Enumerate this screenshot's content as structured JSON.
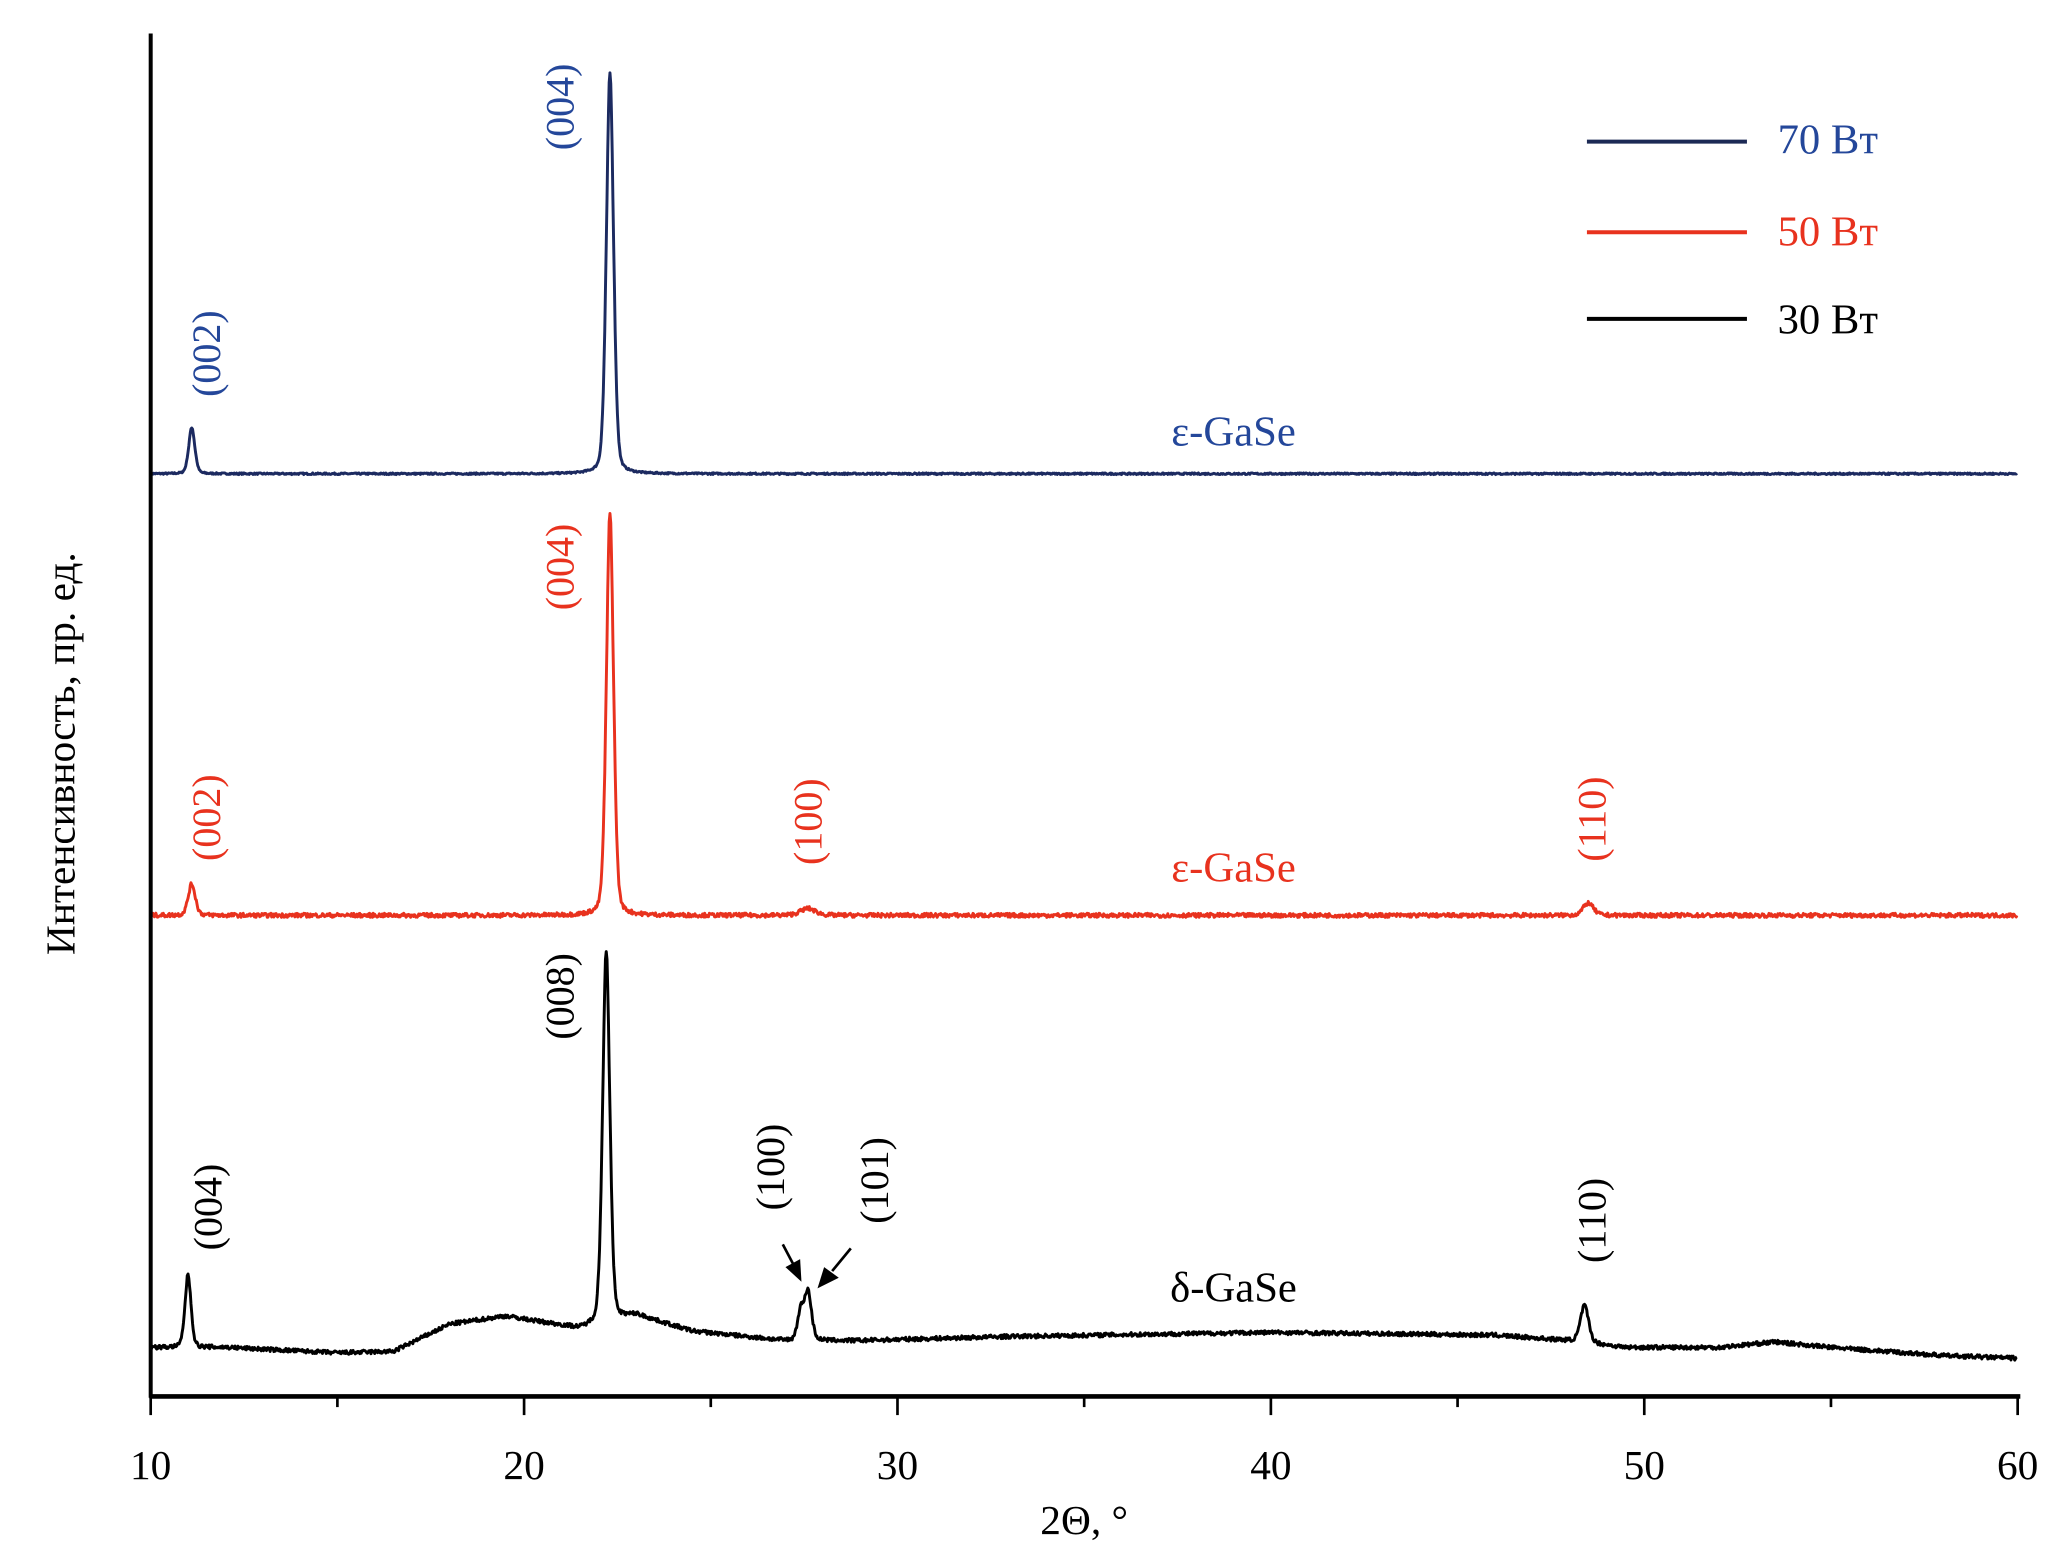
{
  "chart_data": {
    "type": "line",
    "title": "",
    "xlabel": "2Θ, °",
    "ylabel": "Интенсивность, пр. ед.",
    "xlim": [
      10,
      60
    ],
    "ylim": [
      0,
      100
    ],
    "xticks": [
      10,
      20,
      30,
      40,
      50,
      60
    ],
    "x_minor_step": 5,
    "y_ticks_shown": false,
    "grid": false,
    "legend": {
      "placement": "top-right",
      "entries": [
        "70 Вт",
        "50 Вт",
        "30 Вт"
      ]
    },
    "series": [
      {
        "name": "70 Вт",
        "color": "#24479a",
        "phase_label": "ε-GaSe",
        "baseline": [
          [
            10,
            67.7
          ],
          [
            60,
            67.7
          ]
        ],
        "peaks": [
          {
            "x": 11.1,
            "height": 3.4,
            "width": 0.12,
            "label": "(002)"
          },
          {
            "x": 22.3,
            "height": 29.4,
            "width": 0.14,
            "label": "(004)"
          }
        ]
      },
      {
        "name": "50 Вт",
        "color": "#e8321e",
        "phase_label": "ε-GaSe",
        "baseline": [
          [
            10,
            35.3
          ],
          [
            60,
            35.3
          ]
        ],
        "peaks": [
          {
            "x": 11.1,
            "height": 2.3,
            "width": 0.14,
            "label": "(002)"
          },
          {
            "x": 22.3,
            "height": 29.5,
            "width": 0.14,
            "label": "(004)"
          },
          {
            "x": 27.6,
            "height": 0.5,
            "width": 0.3,
            "label": "(100)"
          },
          {
            "x": 48.5,
            "height": 0.9,
            "width": 0.2,
            "label": "(110)"
          }
        ]
      },
      {
        "name": "30 Вт",
        "color": "#000000",
        "phase_label": "δ-GaSe",
        "baseline": [
          [
            10,
            3.6
          ],
          [
            12,
            3.6
          ],
          [
            15,
            3.2
          ],
          [
            16.5,
            3.3
          ],
          [
            18,
            5.3
          ],
          [
            19.5,
            5.9
          ],
          [
            21.5,
            5.0
          ],
          [
            23,
            6.0
          ],
          [
            24.5,
            4.8
          ],
          [
            27,
            4.1
          ],
          [
            29,
            4.1
          ],
          [
            33,
            4.4
          ],
          [
            40,
            4.7
          ],
          [
            46,
            4.5
          ],
          [
            48,
            4.1
          ],
          [
            49.5,
            3.6
          ],
          [
            52,
            3.6
          ],
          [
            53.5,
            4.0
          ],
          [
            55,
            3.6
          ],
          [
            58,
            3.0
          ],
          [
            60,
            2.8
          ]
        ],
        "peaks": [
          {
            "x": 11.0,
            "height": 5.3,
            "width": 0.12,
            "label": "(004)"
          },
          {
            "x": 22.2,
            "height": 27.3,
            "width": 0.14,
            "label": "(008)"
          },
          {
            "x": 27.4,
            "height": 2.0,
            "width": 0.12,
            "label": "(100)"
          },
          {
            "x": 27.6,
            "height": 3.6,
            "width": 0.14,
            "label": "(101)"
          },
          {
            "x": 48.4,
            "height": 2.7,
            "width": 0.16,
            "label": "(110)"
          }
        ]
      }
    ]
  }
}
